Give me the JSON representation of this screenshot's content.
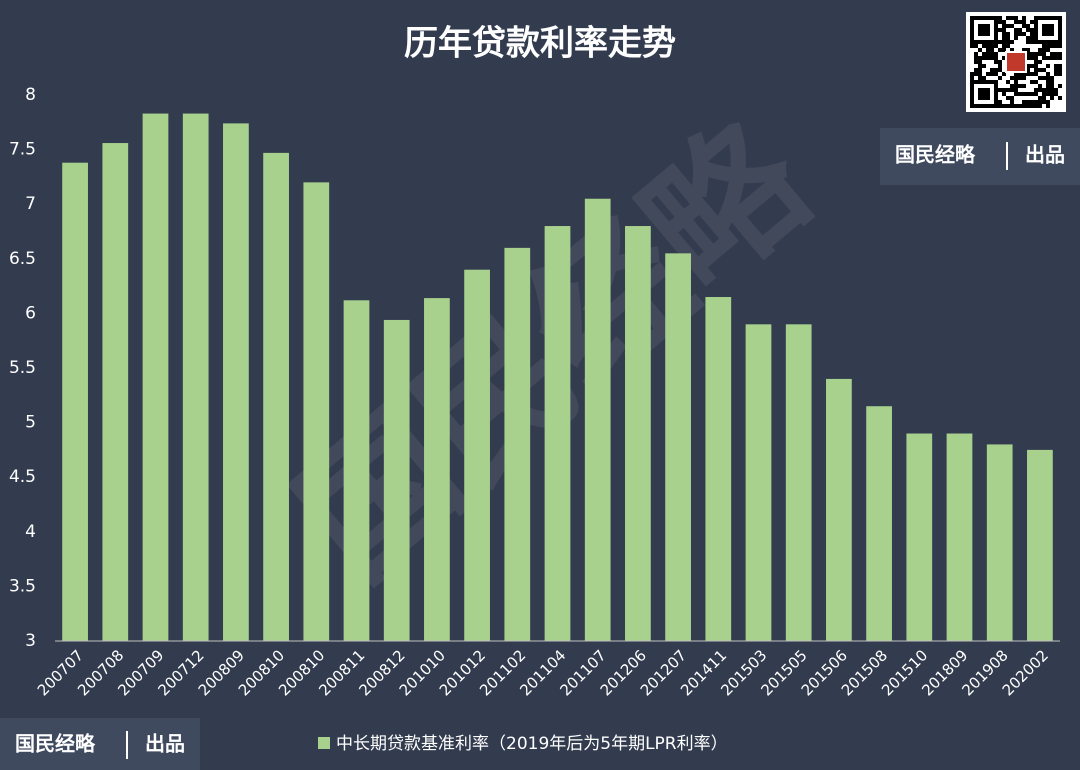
{
  "chart_data": {
    "type": "bar",
    "title": "历年贷款利率走势",
    "categories": [
      "200707",
      "200708",
      "200709",
      "200712",
      "200809",
      "200810",
      "200810",
      "200811",
      "200812",
      "201010",
      "201012",
      "201102",
      "201104",
      "201107",
      "201206",
      "201207",
      "201411",
      "201503",
      "201505",
      "201506",
      "201508",
      "201510",
      "201809",
      "201908",
      "202002"
    ],
    "series": [
      {
        "name": "中长期贷款基准利率（2019年后为5年期LPR利率）",
        "color": "#a9d18e",
        "values": [
          7.38,
          7.56,
          7.83,
          7.83,
          7.74,
          7.47,
          7.2,
          6.12,
          5.94,
          6.14,
          6.4,
          6.6,
          6.8,
          7.05,
          6.8,
          6.55,
          6.15,
          5.9,
          5.9,
          5.4,
          5.15,
          4.9,
          4.9,
          4.8,
          4.75
        ]
      }
    ],
    "ylim": [
      3,
      8
    ],
    "yticks": [
      3,
      3.5,
      4,
      4.5,
      5,
      5.5,
      6,
      6.5,
      7,
      7.5,
      8
    ],
    "grid": false,
    "legend": "bottom"
  },
  "watermark": "国民经略",
  "badges": [
    {
      "name": "国民经略",
      "tag": "出品"
    },
    {
      "name": "国民经略",
      "tag": "出品"
    }
  ]
}
